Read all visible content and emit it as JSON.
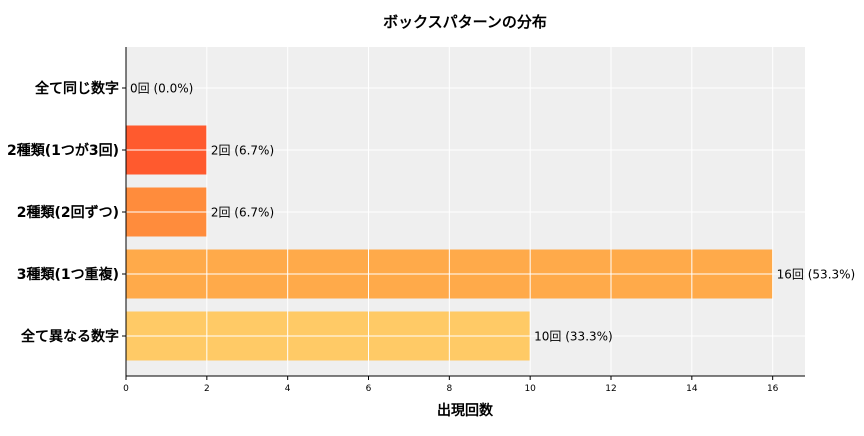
{
  "chart_data": {
    "type": "bar",
    "orientation": "horizontal",
    "title": "ボックスパターンの分布",
    "xlabel": "出現回数",
    "ylabel": "",
    "categories": [
      "全て同じ数字",
      "2種類(1つが3回)",
      "2種類(2回ずつ)",
      "3種類(1つ重複)",
      "全て異なる数字"
    ],
    "values": [
      0,
      2,
      2,
      16,
      10
    ],
    "data_labels": [
      "0回 (0.0%)",
      "2回 (6.7%)",
      "2回 (6.7%)",
      "16回 (53.3%)",
      "10回 (33.3%)"
    ],
    "colors": [
      "#ff5a2e",
      "#ff5a2e",
      "#ff8c3c",
      "#ffaa4a",
      "#ffca66"
    ],
    "xlim": [
      0,
      16.8
    ],
    "xticks": [
      "0",
      "2",
      "4",
      "6",
      "8",
      "10",
      "12",
      "14",
      "16"
    ],
    "grid": true,
    "background": "#efefef"
  }
}
